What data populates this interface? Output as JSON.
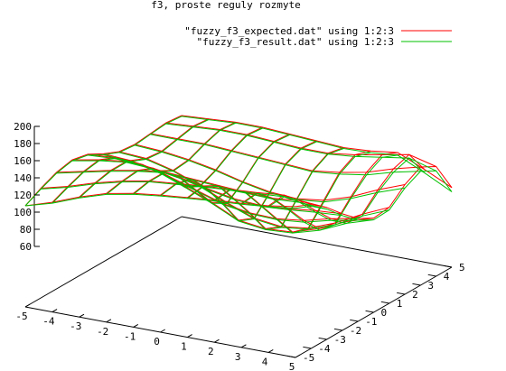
{
  "chart_data": {
    "type": "surface3d",
    "title": "f3, proste reguly rozmyte",
    "xlabel": "",
    "ylabel": "",
    "zlabel": "",
    "xlim": [
      -5,
      5
    ],
    "ylim": [
      -5,
      5
    ],
    "zlim": [
      60,
      200
    ],
    "x_ticks": [
      "-5",
      "-4",
      "-3",
      "-2",
      "-1",
      "0",
      "1",
      "2",
      "3",
      "4",
      "5"
    ],
    "y_ticks": [
      "-5",
      "-4",
      "-3",
      "-2",
      "-1",
      "0",
      "1",
      "2",
      "3",
      "4",
      "5"
    ],
    "z_ticks": [
      "60",
      "80",
      "100",
      "120",
      "140",
      "160",
      "180",
      "200"
    ],
    "grid": false,
    "legend_position": "top-right",
    "x": [
      -5,
      -4,
      -3,
      -2,
      -1,
      0,
      1,
      2,
      3,
      4,
      5
    ],
    "y": [
      -5,
      -4,
      -3,
      -2,
      -1,
      0,
      1,
      2,
      3,
      4,
      5
    ],
    "series": [
      {
        "name": "\"fuzzy_f3_expected.dat\" using 1:2:3",
        "color": "#ff0000",
        "z": [
          [
            140,
            150,
            162,
            172,
            178,
            182,
            185,
            188,
            190,
            193,
            198
          ],
          [
            150,
            158,
            168,
            176,
            182,
            185,
            188,
            190,
            192,
            195,
            190
          ],
          [
            158,
            165,
            172,
            178,
            182,
            180,
            178,
            176,
            175,
            178,
            176
          ],
          [
            162,
            168,
            172,
            170,
            165,
            158,
            152,
            150,
            152,
            156,
            158
          ],
          [
            158,
            160,
            158,
            150,
            140,
            130,
            125,
            124,
            128,
            136,
            142
          ],
          [
            148,
            146,
            140,
            128,
            115,
            100,
            96,
            98,
            108,
            122,
            132
          ],
          [
            140,
            138,
            130,
            118,
            104,
            92,
            88,
            92,
            104,
            120,
            134
          ],
          [
            138,
            136,
            132,
            126,
            118,
            112,
            110,
            114,
            124,
            138,
            150
          ],
          [
            140,
            140,
            140,
            138,
            136,
            134,
            132,
            136,
            142,
            152,
            160
          ],
          [
            142,
            144,
            146,
            146,
            144,
            142,
            142,
            146,
            152,
            158,
            150
          ],
          [
            140,
            142,
            144,
            144,
            142,
            140,
            138,
            140,
            144,
            130,
            115
          ]
        ]
      },
      {
        "name": "\"fuzzy_f3_result.dat\" using 1:2:3",
        "color": "#00c000",
        "z": [
          [
            140,
            149,
            161,
            171,
            177,
            181,
            184,
            187,
            189,
            192,
            196
          ],
          [
            149,
            157,
            167,
            175,
            181,
            184,
            187,
            189,
            191,
            193,
            188
          ],
          [
            157,
            164,
            171,
            177,
            181,
            179,
            177,
            175,
            174,
            176,
            174
          ],
          [
            161,
            167,
            171,
            169,
            164,
            157,
            151,
            149,
            151,
            154,
            156
          ],
          [
            157,
            159,
            157,
            149,
            139,
            129,
            124,
            123,
            126,
            134,
            140
          ],
          [
            147,
            145,
            139,
            127,
            114,
            99,
            95,
            97,
            106,
            120,
            130
          ],
          [
            139,
            137,
            129,
            117,
            103,
            91,
            87,
            91,
            102,
            118,
            131
          ],
          [
            137,
            135,
            131,
            125,
            117,
            111,
            109,
            112,
            122,
            135,
            146
          ],
          [
            139,
            139,
            139,
            137,
            135,
            133,
            131,
            134,
            139,
            148,
            155
          ],
          [
            141,
            143,
            145,
            145,
            143,
            141,
            141,
            144,
            149,
            154,
            145
          ],
          [
            139,
            141,
            143,
            143,
            141,
            139,
            137,
            138,
            141,
            126,
            110
          ]
        ]
      }
    ]
  }
}
